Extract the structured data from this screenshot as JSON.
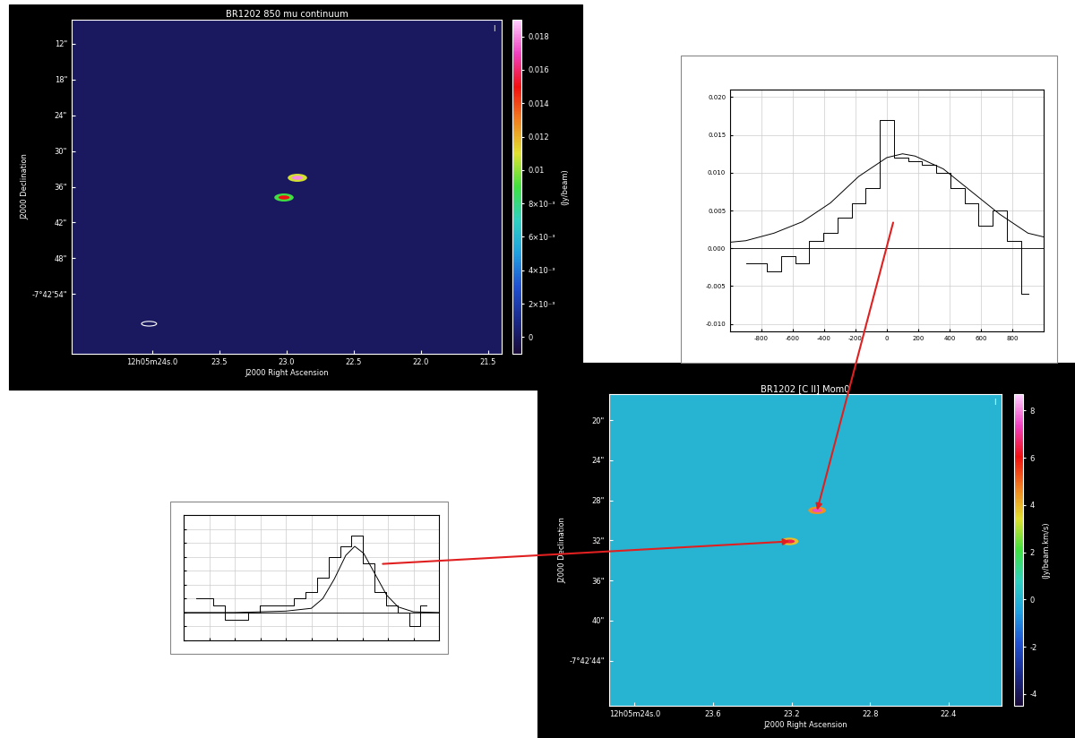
{
  "chart_data": [
    {
      "type": "image",
      "title": "BR1202 850 mu continuum",
      "corner_label": "I",
      "xlabel": "J2000 Right Ascension",
      "ylabel": "J2000 Declination",
      "colorbar_label": "(Jy/beam)",
      "xlim": [
        24.6,
        21.4
      ],
      "xticks": [
        {
          "value": 24.0,
          "label": "12h05m24s.0"
        },
        23.5,
        23.0,
        22.5,
        22.0,
        21.5
      ],
      "ylim": [
        64,
        8
      ],
      "yticks": [
        {
          "value": 12,
          "label": "12\""
        },
        {
          "value": 18,
          "label": "18\""
        },
        {
          "value": 24,
          "label": "24\""
        },
        {
          "value": 30,
          "label": "30\""
        },
        {
          "value": 36,
          "label": "36\""
        },
        {
          "value": 42,
          "label": "42\""
        },
        {
          "value": 48,
          "label": "48\""
        },
        {
          "value": 54,
          "label": "-7°42'54\""
        }
      ],
      "background_level": 0,
      "sources": [
        {
          "ra": 22.92,
          "dec": 34.5,
          "peak": 0.018
        },
        {
          "ra": 23.02,
          "dec": 37.8,
          "peak": 0.015
        }
      ],
      "colorbar_lim": [
        -0.001,
        0.019
      ],
      "colorbar_ticks": [
        0,
        {
          "value": 0.002,
          "label": "2×10⁻³"
        },
        {
          "value": 0.004,
          "label": "4×10⁻³"
        },
        {
          "value": 0.006,
          "label": "6×10⁻³"
        },
        {
          "value": 0.008,
          "label": "8×10⁻³"
        },
        0.01,
        0.012,
        0.014,
        0.016,
        0.018
      ]
    },
    {
      "type": "image",
      "title": "BR1202 [C II] Mom0",
      "corner_label": "I",
      "xlabel": "J2000 Right Ascension",
      "ylabel": "J2000 Declination",
      "colorbar_label": "(Jy/beam.km/s)",
      "xlim": [
        24.13,
        22.13
      ],
      "xticks": [
        {
          "value": 24.0,
          "label": "12h05m24s.0"
        },
        23.6,
        23.2,
        22.8,
        22.4
      ],
      "ylim": [
        48.5,
        17.4
      ],
      "yticks": [
        {
          "value": 20,
          "label": "20\""
        },
        {
          "value": 24,
          "label": "24\""
        },
        {
          "value": 28,
          "label": "28\""
        },
        {
          "value": 32,
          "label": "32\""
        },
        {
          "value": 36,
          "label": "36\""
        },
        {
          "value": 40,
          "label": "40\""
        },
        {
          "value": 44,
          "label": "-7°42'44\""
        }
      ],
      "background_level": 0,
      "sources": [
        {
          "ra": 23.07,
          "dec": 29.0,
          "peak": 7.5
        },
        {
          "ra": 23.21,
          "dec": 32.1,
          "peak": 6.5
        }
      ],
      "colorbar_lim": [
        -4.5,
        8.7
      ],
      "colorbar_ticks": [
        -4,
        -2,
        0,
        2,
        4,
        6,
        8
      ]
    },
    {
      "type": "step",
      "color": "#000000",
      "grid": true,
      "baseline": 0,
      "x": [
        -900,
        -810,
        -720,
        -630,
        -540,
        -450,
        -360,
        -270,
        -180,
        -90,
        0,
        90,
        180,
        270,
        360,
        450,
        540,
        630,
        720,
        810,
        900
      ],
      "values": [
        -0.002,
        -0.002,
        -0.003,
        -0.001,
        -0.002,
        0.001,
        0.002,
        0.004,
        0.006,
        0.008,
        0.017,
        0.012,
        0.0115,
        0.011,
        0.01,
        0.008,
        0.006,
        0.003,
        0.005,
        0.001,
        -0.006
      ],
      "fit_x": [
        -1000,
        -900,
        -720,
        -540,
        -360,
        -180,
        0,
        100,
        180,
        360,
        540,
        720,
        900,
        1000
      ],
      "fit": [
        0.0008,
        0.001,
        0.002,
        0.0035,
        0.006,
        0.0095,
        0.012,
        0.0125,
        0.0122,
        0.0105,
        0.0075,
        0.0045,
        0.002,
        0.0015
      ],
      "xlim": [
        -1000,
        1000
      ],
      "xticks": [
        -800,
        -600,
        -400,
        -200,
        0,
        200,
        400,
        600,
        800
      ],
      "ylim": [
        -0.011,
        0.021
      ],
      "yticks": [
        {
          "value": -0.01,
          "label": "-0.010"
        },
        {
          "value": -0.005,
          "label": "-0.005"
        },
        {
          "value": 0,
          "label": "0.000"
        },
        {
          "value": 0.005,
          "label": "0.005"
        },
        {
          "value": 0.01,
          "label": "0.010"
        },
        {
          "value": 0.015,
          "label": "0.015"
        },
        {
          "value": 0.02,
          "label": "0.020"
        }
      ]
    },
    {
      "type": "step",
      "color": "#000000",
      "grid": true,
      "baseline": 0,
      "tick_labels": false,
      "x": [
        -900,
        -810,
        -720,
        -630,
        -540,
        -450,
        -360,
        -270,
        -180,
        -90,
        0,
        90,
        180,
        270,
        360,
        450,
        540,
        630,
        720,
        810,
        900
      ],
      "values": [
        0.002,
        0.002,
        0.001,
        -0.001,
        -0.001,
        0.0,
        0.001,
        0.001,
        0.001,
        0.002,
        0.003,
        0.005,
        0.008,
        0.0095,
        0.011,
        0.007,
        0.003,
        0.001,
        0.0,
        -0.002,
        0.001
      ],
      "fit_x": [
        -1000,
        -600,
        -200,
        0,
        90,
        180,
        270,
        340,
        410,
        500,
        590,
        680,
        800,
        1000
      ],
      "fit": [
        0,
        0,
        0.0002,
        0.0006,
        0.002,
        0.0048,
        0.0082,
        0.0095,
        0.0085,
        0.0055,
        0.0025,
        0.0008,
        0.0001,
        0
      ],
      "xlim": [
        -1000,
        1000
      ],
      "xticks": [
        -800,
        -600,
        -400,
        -200,
        0,
        200,
        400,
        600,
        800
      ],
      "ylim": [
        -0.004,
        0.014
      ],
      "yticks": [
        -0.004,
        -0.002,
        0,
        0.002,
        0.004,
        0.006,
        0.008,
        0.01,
        0.012
      ]
    }
  ]
}
